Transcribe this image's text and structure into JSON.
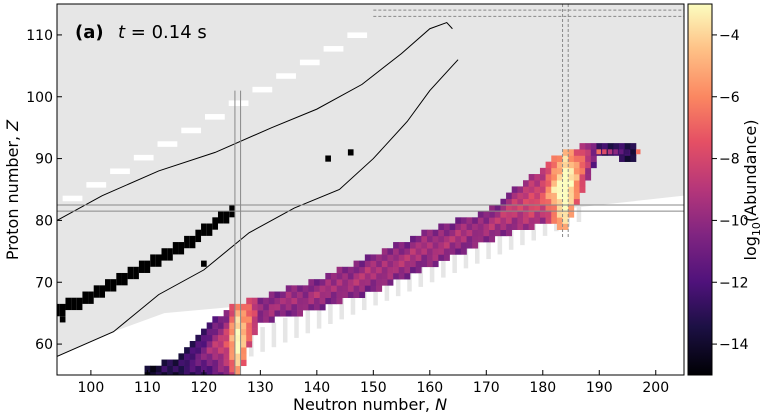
{
  "chart_data": {
    "type": "heatmap",
    "panel_label": "(a)",
    "time_label_var": "t",
    "time_label_val": " = 0.14 s",
    "xlabel_text": "Neutron number, ",
    "xlabel_var": "N",
    "ylabel_text": "Proton number, ",
    "ylabel_var": "Z",
    "colorbar_label": "log10(Abundance)",
    "colorbar_label_base": "log",
    "colorbar_label_sub": "10",
    "colorbar_label_rest": "(Abundance)",
    "xlim": [
      94,
      205
    ],
    "ylim": [
      55,
      115
    ],
    "x_ticks": [
      100,
      110,
      120,
      130,
      140,
      150,
      160,
      170,
      180,
      190,
      200
    ],
    "y_ticks": [
      60,
      70,
      80,
      90,
      100,
      110
    ],
    "colorbar_range": [
      -15,
      -3
    ],
    "colorbar_ticks": [
      -4,
      -6,
      -8,
      -10,
      -12,
      -14
    ],
    "colormap": "magma",
    "magic_numbers": {
      "Z": 82,
      "N": [
        126,
        184
      ]
    },
    "background_color": "#e6e6e6",
    "stable_color": "#000000",
    "contour_color": "#000000",
    "magic_line_color": "#888888",
    "abundance_band": [
      {
        "N": 110,
        "Z_range": [
          55,
          56
        ],
        "logY": -13.5
      },
      {
        "N": 115,
        "Z_range": [
          55,
          57
        ],
        "logY": -13
      },
      {
        "N": 120,
        "Z_range": [
          55,
          62
        ],
        "logY": -12
      },
      {
        "N": 124,
        "Z_range": [
          55,
          65
        ],
        "logY": -10
      },
      {
        "N": 126,
        "Z_range": [
          55,
          66
        ],
        "logY": -5
      },
      {
        "N": 130,
        "Z_range": [
          64,
          67
        ],
        "logY": -10
      },
      {
        "N": 140,
        "Z_range": [
          66,
          70
        ],
        "logY": -10
      },
      {
        "N": 150,
        "Z_range": [
          69,
          74
        ],
        "logY": -10
      },
      {
        "N": 160,
        "Z_range": [
          73,
          78
        ],
        "logY": -10
      },
      {
        "N": 170,
        "Z_range": [
          77,
          81
        ],
        "logY": -10
      },
      {
        "N": 180,
        "Z_range": [
          80,
          88
        ],
        "logY": -9
      },
      {
        "N": 184,
        "Z_range": [
          79,
          91
        ],
        "logY": -4
      },
      {
        "N": 190,
        "Z_range": [
          91,
          92
        ],
        "logY": -12
      },
      {
        "N": 197,
        "Z_range": [
          90,
          92
        ],
        "logY": -13
      }
    ]
  }
}
